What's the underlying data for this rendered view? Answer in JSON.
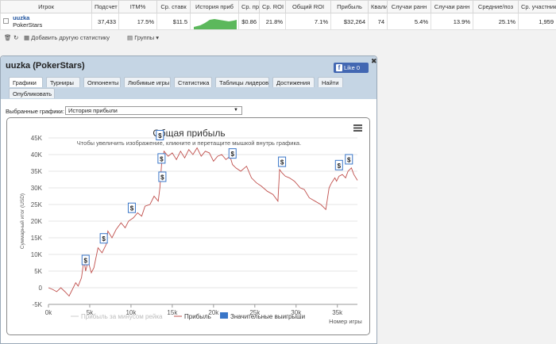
{
  "stats": {
    "headers": [
      "Игрок",
      "Подсчет",
      "ITM%",
      "Ср. ставк",
      "История приб",
      "Ср. прибы",
      "Ср. ROI",
      "Общий ROI",
      "Прибыль",
      "Квали",
      "Случаи ранн",
      "Случаи ранн",
      "Средние/поз",
      "Ср. участник"
    ],
    "row": {
      "player": "uuzka",
      "site": "PokerStars",
      "count": "37,433",
      "itm": "17.5%",
      "avg_stake": "$11.5",
      "avg_profit": "$0.86",
      "avg_roi": "21.8%",
      "total_roi": "7.1%",
      "profit": "$32,264",
      "quali": "74",
      "early1": "5.4%",
      "early2": "13.9%",
      "avg_pos": "25.1%",
      "avg_entrants": "1,959"
    }
  },
  "toolbar": {
    "add_stats": "Добавить другую статистику",
    "groups": "Группы"
  },
  "widget": {
    "title": "uuzka (PokerStars)",
    "like": "Like 0",
    "tabs_row1": [
      "Графики",
      "Турниры",
      "Оппоненты",
      "Любимые игры",
      "Статистика",
      "Таблицы лидеров",
      "Достижения",
      "Найти"
    ],
    "tabs_row2": [
      "Опубликовать"
    ],
    "selected_label": "Выбранные графики:",
    "selected_value": "История прибыли"
  },
  "colors": {
    "line": "#c0504d",
    "accent": "#3a76c8",
    "header": "#c5d5e4"
  },
  "chart_data": {
    "type": "line",
    "title": "Общая прибыль",
    "subtitle": "Чтобы увеличить изображение, кликните и перетащите мышкой внутрь графика.",
    "xlabel": "Номер игры",
    "ylabel": "Суммарный итог (USD)",
    "xlim": [
      0,
      37433
    ],
    "ylim": [
      -5000,
      45000
    ],
    "x_ticks": [
      "0k",
      "5k",
      "10k",
      "15k",
      "20k",
      "25k",
      "30k",
      "35k"
    ],
    "y_ticks": [
      "-5K",
      "0",
      "5K",
      "10K",
      "15K",
      "20K",
      "25K",
      "30K",
      "35K",
      "40K",
      "45K"
    ],
    "legend": [
      "Прибыль за минусом рейка",
      "Прибыль",
      "Значительные выигрыши"
    ],
    "legend_placement": "bottom",
    "series": [
      {
        "name": "Прибыль",
        "x": [
          0,
          500,
          1000,
          1500,
          2000,
          2500,
          3000,
          3300,
          3600,
          4000,
          4300,
          4500,
          4800,
          5200,
          5500,
          6000,
          6500,
          7000,
          7200,
          7700,
          8200,
          8800,
          9300,
          9700,
          10300,
          10800,
          11300,
          11700,
          12300,
          12800,
          13300,
          13500,
          13700,
          14000,
          14500,
          15000,
          15500,
          16000,
          16500,
          17000,
          17500,
          18000,
          18500,
          19000,
          19500,
          20000,
          20500,
          21000,
          21500,
          22000,
          22300,
          22700,
          23300,
          24000,
          24600,
          25200,
          25800,
          26500,
          27200,
          27800,
          28000,
          28300,
          28700,
          29200,
          29800,
          30500,
          31000,
          31600,
          32300,
          33000,
          33600,
          34000,
          34300,
          34700,
          34900,
          35200,
          35600,
          36000,
          36300,
          36700,
          37000,
          37433
        ],
        "values": [
          0,
          -500,
          -1200,
          0,
          -1200,
          -2500,
          0,
          1500,
          500,
          3000,
          8500,
          5000,
          8000,
          4500,
          6000,
          12000,
          10500,
          13000,
          17000,
          15000,
          17500,
          19500,
          18000,
          20000,
          21000,
          22500,
          21500,
          24500,
          25000,
          27500,
          26000,
          30000,
          37000,
          41000,
          39500,
          40500,
          38500,
          41000,
          39000,
          41500,
          40000,
          42000,
          39500,
          41000,
          40500,
          38000,
          39500,
          40000,
          38500,
          39500,
          37000,
          36000,
          35000,
          36500,
          33000,
          31500,
          30500,
          29000,
          28000,
          26000,
          35500,
          34500,
          33500,
          33000,
          32000,
          30000,
          29500,
          27000,
          26000,
          25000,
          23500,
          30000,
          31500,
          33000,
          32000,
          33500,
          34000,
          33000,
          35000,
          36000,
          34000,
          32264
        ]
      }
    ],
    "big_wins_x": [
      4500,
      6700,
      10100,
      13500,
      13700,
      13800,
      22300,
      28300,
      35200,
      36400
    ]
  }
}
